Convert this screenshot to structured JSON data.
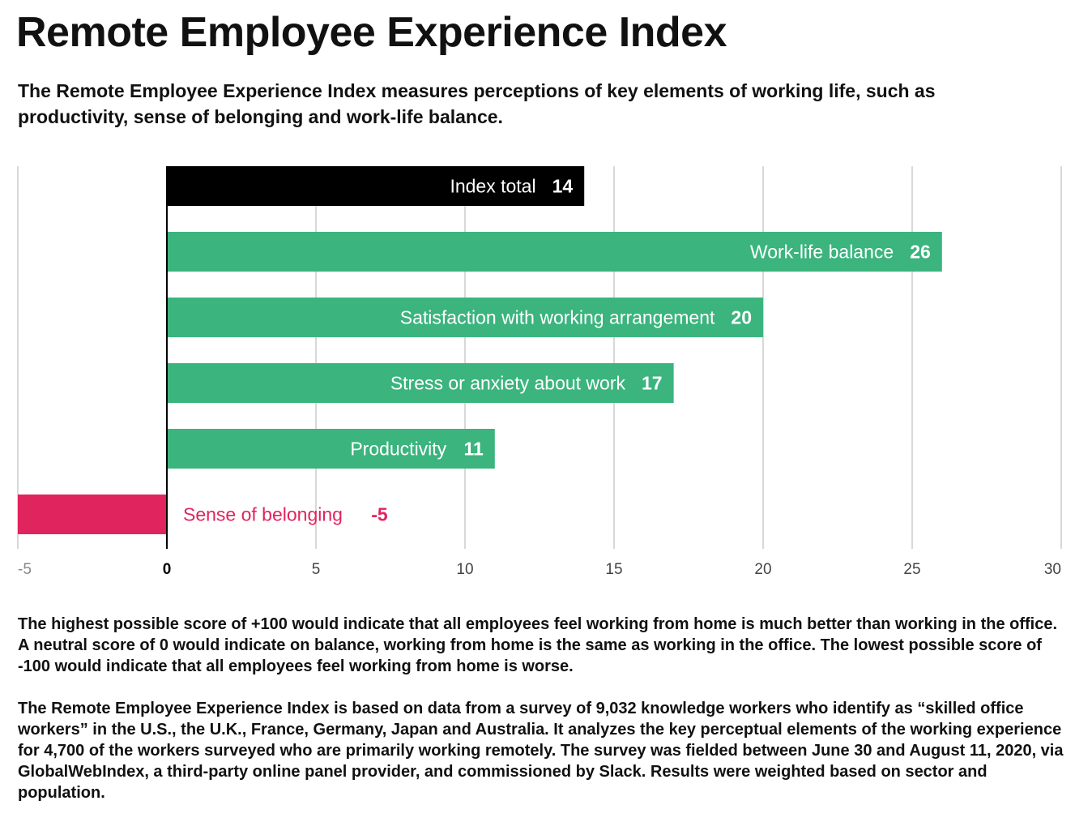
{
  "title": "Remote Employee Experience Index",
  "subtitle": "The Remote Employee Experience Index measures perceptions of key elements of working life, such as productivity, sense of belonging and work-life balance.",
  "notes": [
    "The highest possible score of +100 would indicate that all employees feel working from home is much better than working in the office. A neutral score of 0 would indicate on balance, working from home is the same as working in the office. The lowest possible score of -100 would indicate that all employees feel working from home is worse.",
    "The Remote Employee Experience Index is based on data from a survey of 9,032 knowledge workers who identify as “skilled office workers” in the U.S., the U.K., France, Germany, Japan and Australia. It analyzes the key perceptual elements of the working experience for 4,700 of the workers surveyed who are primarily working remotely. The survey was fielded between June 30 and August 11, 2020, via GlobalWebIndex, a third-party online panel provider, and commissioned by Slack. Results were weighted based on sector and population."
  ],
  "colors": {
    "total": "#000000",
    "positive": "#3bb47e",
    "negative": "#e0245e",
    "grid": "#cccccc",
    "tick": "#444444"
  },
  "chart_data": {
    "type": "bar",
    "orientation": "horizontal",
    "categories": [
      "Index total",
      "Work-life balance",
      "Satisfaction with working arrangement",
      "Stress or anxiety about work",
      "Productivity",
      "Sense of belonging"
    ],
    "values": [
      14,
      26,
      20,
      17,
      11,
      -5
    ],
    "value_labels": [
      "14",
      "26",
      "20",
      "17",
      "11",
      "-5"
    ],
    "xlim": [
      -5,
      30
    ],
    "xticks": [
      -5,
      0,
      5,
      10,
      15,
      20,
      25,
      30
    ],
    "xtick_labels": [
      "-5",
      "0",
      "5",
      "10",
      "15",
      "20",
      "25",
      "30"
    ],
    "grid": true,
    "legend": "none"
  }
}
